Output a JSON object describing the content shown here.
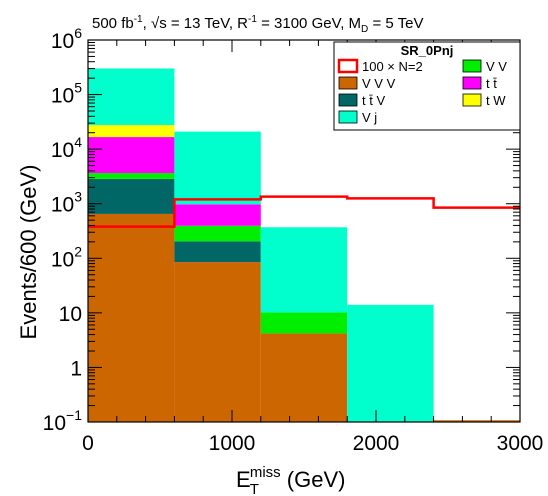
{
  "chart_data": {
    "type": "bar",
    "stacked": true,
    "title": "500 fb⁻¹, √s = 13 TeV, R⁻¹ = 3100 GeV, M_D = 5 TeV",
    "title_parts": {
      "lumi": "500 fb",
      "lumi_exp": "-1",
      "sqrt": "√",
      "energy": "s = 13 TeV, R",
      "r_exp": "-1",
      "mass": " = 3100 GeV, M",
      "md_sub": "D",
      "md_val": " = 5 TeV"
    },
    "xlabel": {
      "base": "E",
      "sub": "T",
      "sup": "miss",
      "unit": " (GeV)"
    },
    "ylabel": "Events/600 (GeV)",
    "ylog": true,
    "xlim": [
      0,
      3000
    ],
    "ylim": [
      0.1,
      1000000
    ],
    "x_ticks": [
      "0",
      "1000",
      "2000",
      "3000"
    ],
    "y_ticks": [
      {
        "base": "10",
        "exp": "−1"
      },
      {
        "base": "1",
        "exp": ""
      },
      {
        "base": "10",
        "exp": ""
      },
      {
        "base": "10",
        "exp": "2"
      },
      {
        "base": "10",
        "exp": "3"
      },
      {
        "base": "10",
        "exp": "4"
      },
      {
        "base": "10",
        "exp": "5"
      },
      {
        "base": "10",
        "exp": "6"
      }
    ],
    "bins": [
      0,
      600,
      1200,
      1800,
      2400,
      3000
    ],
    "stack_series": [
      {
        "name": "V V V",
        "color": "#cc6600",
        "values": [
          650,
          85,
          4.2,
          0,
          0
        ]
      },
      {
        "name": "t t̄ V",
        "color": "#006666",
        "values": [
          2200,
          120,
          0,
          0,
          0
        ]
      },
      {
        "name": "V V",
        "color": "#00ee00",
        "values": [
          800,
          190,
          6,
          0,
          0
        ]
      },
      {
        "name": "t t̄",
        "color": "#ff00ff",
        "values": [
          13000,
          580,
          0,
          0,
          0
        ]
      },
      {
        "name": "t W",
        "color": "#ffff00",
        "values": [
          11000,
          0,
          0,
          0,
          0
        ]
      },
      {
        "name": "V j",
        "color": "#00ffcc",
        "values": [
          273000,
          20000,
          360,
          14,
          0
        ]
      }
    ],
    "overlay_series": [
      {
        "name": "100 × N=2",
        "color": "#ff0000",
        "values": [
          380,
          1200,
          1350,
          1250,
          850
        ]
      }
    ],
    "legend": {
      "title": "SR_0Pnj",
      "placement": "top-right",
      "entries": [
        {
          "label": "100 × N=2",
          "color": "#ff0000",
          "style": "line"
        },
        {
          "label": "V V",
          "color": "#00ee00",
          "style": "fill"
        },
        {
          "label": "V V V",
          "color": "#cc6600",
          "style": "fill"
        },
        {
          "label": "t t̄",
          "color": "#ff00ff",
          "style": "fill"
        },
        {
          "label": "t t̄ V",
          "color": "#006666",
          "style": "fill"
        },
        {
          "label": "t W",
          "color": "#ffff00",
          "style": "fill"
        },
        {
          "label": "V j",
          "color": "#00ffcc",
          "style": "fill"
        }
      ]
    }
  }
}
